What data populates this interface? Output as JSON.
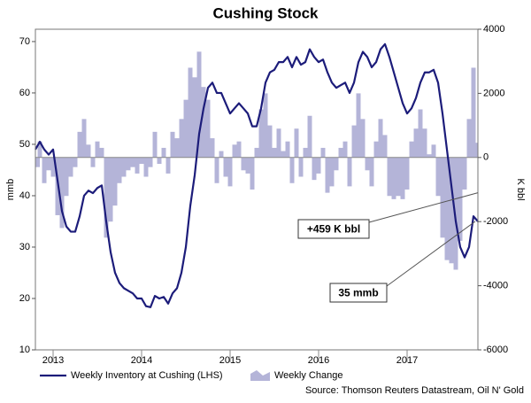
{
  "chart_data": {
    "type": "line-bar",
    "title": "Cushing Stock",
    "ylabel": "mmb",
    "y2label": "K bbl",
    "source": "Source: Thomson Reuters Datastream, Oil N' Gold",
    "annotations": [
      "+459 K bbl",
      "35 mmb"
    ],
    "x": [
      2012.8,
      2012.85,
      2012.9,
      2012.95,
      2013.0,
      2013.05,
      2013.1,
      2013.15,
      2013.2,
      2013.25,
      2013.3,
      2013.35,
      2013.4,
      2013.45,
      2013.5,
      2013.55,
      2013.6,
      2013.65,
      2013.7,
      2013.75,
      2013.8,
      2013.85,
      2013.9,
      2013.95,
      2014.0,
      2014.05,
      2014.1,
      2014.15,
      2014.2,
      2014.25,
      2014.3,
      2014.35,
      2014.4,
      2014.45,
      2014.5,
      2014.55,
      2014.6,
      2014.65,
      2014.7,
      2014.75,
      2014.8,
      2014.85,
      2014.9,
      2014.95,
      2015.0,
      2015.05,
      2015.1,
      2015.15,
      2015.2,
      2015.25,
      2015.3,
      2015.35,
      2015.4,
      2015.45,
      2015.5,
      2015.55,
      2015.6,
      2015.65,
      2015.7,
      2015.75,
      2015.8,
      2015.85,
      2015.9,
      2015.95,
      2016.0,
      2016.05,
      2016.1,
      2016.15,
      2016.2,
      2016.25,
      2016.3,
      2016.35,
      2016.4,
      2016.45,
      2016.5,
      2016.55,
      2016.6,
      2016.65,
      2016.7,
      2016.75,
      2016.8,
      2016.85,
      2016.9,
      2016.95,
      2017.0,
      2017.05,
      2017.1,
      2017.15,
      2017.2,
      2017.25,
      2017.3,
      2017.35,
      2017.4,
      2017.45,
      2017.5,
      2017.55,
      2017.6,
      2017.65,
      2017.7,
      2017.75,
      2017.8
    ],
    "series": [
      {
        "name": "Weekly Inventory at Cushing (LHS)",
        "color": "#1c1c7a",
        "axis": "y",
        "values": [
          49,
          50.5,
          49,
          48,
          49,
          43,
          37,
          34,
          33,
          33,
          36,
          40,
          41,
          40.5,
          41.5,
          42,
          35,
          29,
          25,
          23,
          22,
          21.5,
          21,
          20,
          20,
          18.5,
          18.3,
          20.5,
          20,
          20.3,
          19,
          21,
          22,
          25,
          30,
          38,
          44,
          52,
          57,
          61,
          62,
          60,
          60,
          58,
          56,
          57,
          58,
          57,
          56,
          53.5,
          53.5,
          57,
          62,
          64,
          64.5,
          66,
          66,
          67,
          65,
          67,
          65.5,
          66,
          68.5,
          67,
          66,
          66.5,
          64,
          62,
          61,
          61.5,
          62,
          60,
          62,
          66,
          68,
          67,
          65,
          66,
          68.5,
          69.5,
          67,
          64,
          61,
          58,
          56,
          57,
          59,
          62,
          64,
          64,
          64.5,
          62,
          56,
          49,
          42,
          35,
          30,
          28,
          30,
          36,
          35
        ]
      },
      {
        "name": "Weekly Change",
        "color": "#b4b4d8",
        "axis": "y2",
        "values": [
          -300,
          500,
          -800,
          -400,
          -600,
          -1800,
          -2200,
          -1200,
          -600,
          -300,
          800,
          1200,
          400,
          -300,
          500,
          300,
          -2500,
          -2000,
          -1500,
          -800,
          -600,
          -400,
          -300,
          -500,
          -200,
          -600,
          -300,
          800,
          -200,
          300,
          -500,
          800,
          600,
          1200,
          1800,
          2800,
          2500,
          3300,
          2200,
          1800,
          600,
          -800,
          200,
          -600,
          -900,
          400,
          500,
          -400,
          -500,
          -1000,
          300,
          1500,
          2000,
          1000,
          300,
          900,
          200,
          500,
          -800,
          900,
          -600,
          300,
          1300,
          -700,
          -500,
          300,
          -1100,
          -900,
          -400,
          300,
          500,
          -900,
          1000,
          2000,
          1200,
          -400,
          -900,
          500,
          1200,
          700,
          -1200,
          -1300,
          -1200,
          -1300,
          -1000,
          500,
          900,
          1500,
          900,
          100,
          400,
          -1200,
          -2500,
          -3200,
          -3300,
          -3500,
          -2600,
          -1000,
          1200,
          2800,
          459
        ]
      }
    ],
    "xlim": [
      2012.8,
      2017.8
    ],
    "xticks": [
      2013,
      2014,
      2015,
      2016,
      2017
    ],
    "ylim": [
      10,
      72.4
    ],
    "yticks": [
      10,
      20,
      30,
      40,
      50,
      60,
      70
    ],
    "y2lim": [
      -6000,
      4000
    ],
    "y2ticks": [
      -6000,
      -4000,
      -2000,
      0,
      2000,
      4000
    ],
    "legend": "bottom-left"
  }
}
